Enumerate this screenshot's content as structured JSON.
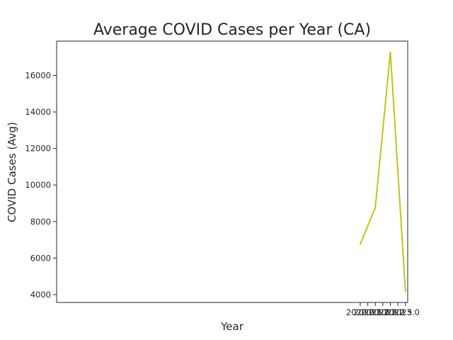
{
  "chart_data": {
    "type": "line",
    "title": "Average COVID Cases per Year (CA)",
    "xlabel": "Year",
    "ylabel": "COVID Cases (Avg)",
    "x": [
      2020.0,
      2021.0,
      2022.0,
      2023.0
    ],
    "series": [
      {
        "values": [
          6750,
          8770,
          17280,
          4170
        ],
        "color": "#bfbf00"
      }
    ],
    "xlim": [
      1999.85,
      2023.15
    ],
    "ylim": [
      3570,
      17880
    ],
    "x_ticks": [
      "2020.0",
      "2020.5",
      "2021.0",
      "2021.5",
      "2022.0",
      "2022.5",
      "2023.0"
    ],
    "y_ticks": [
      "4000",
      "6000",
      "8000",
      "10000",
      "12000",
      "14000",
      "16000"
    ],
    "grid": false,
    "legend": "none"
  }
}
